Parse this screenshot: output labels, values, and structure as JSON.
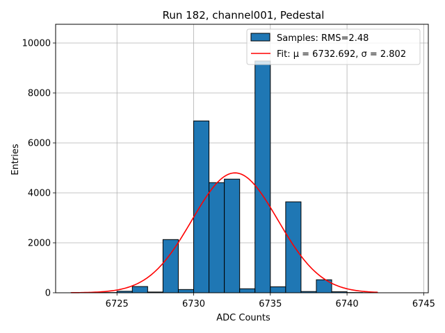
{
  "chart_data": {
    "type": "bar",
    "title": "Run 182, channel001, Pedestal",
    "xlabel": "ADC Counts",
    "ylabel": "Entries",
    "xlim": [
      6721.0,
      6745.3
    ],
    "ylim": [
      0,
      10750
    ],
    "xticks": [
      6725,
      6730,
      6735,
      6740,
      6745
    ],
    "yticks": [
      0,
      2000,
      4000,
      6000,
      8000,
      10000
    ],
    "grid": true,
    "legend_position": "top-right",
    "bin_width": 1.0,
    "bars": [
      {
        "left": 6722,
        "value": 5
      },
      {
        "left": 6723,
        "value": 5
      },
      {
        "left": 6724,
        "value": 10
      },
      {
        "left": 6725,
        "value": 60
      },
      {
        "left": 6726,
        "value": 250
      },
      {
        "left": 6727,
        "value": 30
      },
      {
        "left": 6728,
        "value": 2130
      },
      {
        "left": 6729,
        "value": 130
      },
      {
        "left": 6730,
        "value": 6880
      },
      {
        "left": 6731,
        "value": 4410
      },
      {
        "left": 6732,
        "value": 4550
      },
      {
        "left": 6733,
        "value": 160
      },
      {
        "left": 6734,
        "value": 9280
      },
      {
        "left": 6735,
        "value": 240
      },
      {
        "left": 6736,
        "value": 3640
      },
      {
        "left": 6737,
        "value": 50
      },
      {
        "left": 6738,
        "value": 520
      },
      {
        "left": 6739,
        "value": 40
      },
      {
        "left": 6740,
        "value": 10
      },
      {
        "left": 6741,
        "value": 5
      }
    ],
    "series": [
      {
        "name": "Samples: RMS=2.48",
        "kind": "histogram",
        "color": "#1f77b4",
        "edgecolor": "#000000"
      },
      {
        "name": "Fit: μ = 6732.692, σ = 2.802",
        "kind": "gaussian",
        "color": "#ff0000",
        "mu": 6732.692,
        "sigma": 2.802,
        "amplitude": 4800,
        "x_range": [
          6722,
          6742
        ]
      }
    ]
  }
}
